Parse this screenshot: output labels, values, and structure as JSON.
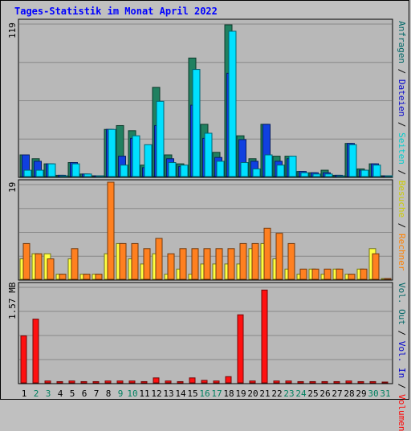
{
  "title": "Tages-Statistik im Monat April 2022",
  "panels": {
    "top": {
      "ymax_label": "119",
      "ymax": 119
    },
    "middle": {
      "ymax_label": "19",
      "ymax": 19
    },
    "bottom": {
      "ymax_label": "1.57 MB",
      "ymax": 1.57
    }
  },
  "right_legend": {
    "top": [
      {
        "text": "Anfragen",
        "color": "#006666"
      },
      {
        "text": " / ",
        "color": "#000000"
      },
      {
        "text": "Dateien",
        "color": "#0000cc"
      },
      {
        "text": " / ",
        "color": "#000000"
      },
      {
        "text": "Seiten",
        "color": "#00cccc"
      },
      {
        "text": " / ",
        "color": "#000000"
      },
      {
        "text": "Besuche",
        "color": "#cccc00"
      },
      {
        "text": " / ",
        "color": "#000000"
      },
      {
        "text": "Rechner",
        "color": "#ff8000"
      }
    ],
    "bottom": [
      {
        "text": "Vol. Out",
        "color": "#006666"
      },
      {
        "text": " / ",
        "color": "#000000"
      },
      {
        "text": "Vol. In",
        "color": "#0000cc"
      },
      {
        "text": " / ",
        "color": "#000000"
      },
      {
        "text": "Volumen",
        "color": "#ff0000"
      }
    ]
  },
  "colors": {
    "anfragen": "#208060",
    "dateien": "#1040e0",
    "seiten": "#00e0ff",
    "besuche": "#ffff40",
    "rechner": "#ff8020",
    "volumen": "#ff1010",
    "weekday_label": "#000000",
    "weekend_label": "#008060"
  },
  "chart_data": [
    {
      "type": "bar",
      "name": "top",
      "x": [
        "1",
        "2",
        "3",
        "4",
        "5",
        "6",
        "7",
        "8",
        "9",
        "10",
        "11",
        "12",
        "13",
        "14",
        "15",
        "16",
        "17",
        "18",
        "19",
        "20",
        "21",
        "22",
        "23",
        "24",
        "25",
        "26",
        "27",
        "28",
        "29",
        "30",
        "31"
      ],
      "weekend": [
        false,
        true,
        true,
        false,
        false,
        false,
        false,
        false,
        true,
        true,
        false,
        false,
        false,
        false,
        false,
        true,
        true,
        false,
        false,
        false,
        false,
        false,
        true,
        true,
        false,
        false,
        false,
        false,
        false,
        true,
        true
      ],
      "series": [
        {
          "key": "anfragen",
          "values": [
            17,
            14,
            10,
            1,
            11,
            2,
            0,
            37,
            40,
            36,
            9,
            70,
            17,
            10,
            93,
            41,
            19,
            119,
            32,
            14,
            41,
            16,
            16,
            4,
            3,
            5,
            1,
            26,
            6,
            10,
            0
          ]
        },
        {
          "key": "dateien",
          "values": [
            17,
            12,
            10,
            1,
            11,
            2,
            0,
            37,
            16,
            30,
            7,
            40,
            14,
            8,
            56,
            30,
            15,
            81,
            29,
            12,
            41,
            12,
            14,
            4,
            3,
            3,
            1,
            26,
            5,
            10,
            0
          ]
        },
        {
          "key": "seiten",
          "values": [
            5,
            5,
            10,
            0,
            10,
            2,
            0,
            37,
            9,
            32,
            25,
            59,
            11,
            9,
            84,
            34,
            12,
            114,
            11,
            6,
            17,
            9,
            16,
            3,
            2,
            2,
            0,
            25,
            5,
            9,
            0
          ]
        }
      ]
    },
    {
      "type": "bar",
      "name": "middle",
      "x": [
        "1",
        "2",
        "3",
        "4",
        "5",
        "6",
        "7",
        "8",
        "9",
        "10",
        "11",
        "12",
        "13",
        "14",
        "15",
        "16",
        "17",
        "18",
        "19",
        "20",
        "21",
        "22",
        "23",
        "24",
        "25",
        "26",
        "27",
        "28",
        "29",
        "30",
        "31"
      ],
      "series": [
        {
          "key": "besuche",
          "values": [
            4,
            5,
            5,
            1,
            4,
            1,
            1,
            5,
            7,
            4,
            3,
            5,
            1,
            2,
            1,
            3,
            3,
            3,
            3,
            6,
            7,
            4,
            2,
            1,
            2,
            1,
            2,
            1,
            2,
            6,
            0
          ]
        },
        {
          "key": "rechner",
          "values": [
            7,
            5,
            4,
            1,
            6,
            1,
            1,
            19,
            7,
            7,
            6,
            8,
            5,
            6,
            6,
            6,
            6,
            6,
            7,
            7,
            10,
            9,
            7,
            2,
            2,
            2,
            2,
            1,
            2,
            5,
            0
          ]
        }
      ]
    },
    {
      "type": "bar",
      "name": "bottom",
      "unit": "MB",
      "x": [
        "1",
        "2",
        "3",
        "4",
        "5",
        "6",
        "7",
        "8",
        "9",
        "10",
        "11",
        "12",
        "13",
        "14",
        "15",
        "16",
        "17",
        "18",
        "19",
        "20",
        "21",
        "22",
        "23",
        "24",
        "25",
        "26",
        "27",
        "28",
        "29",
        "30",
        "31"
      ],
      "series": [
        {
          "key": "volumen",
          "values": [
            0.76,
            1.03,
            0.03,
            0.02,
            0.03,
            0.02,
            0.02,
            0.03,
            0.03,
            0.03,
            0.02,
            0.08,
            0.03,
            0.02,
            0.08,
            0.04,
            0.03,
            0.1,
            1.1,
            0.03,
            1.5,
            0.03,
            0.03,
            0.02,
            0.02,
            0.02,
            0.02,
            0.03,
            0.02,
            0.02,
            0
          ]
        }
      ]
    }
  ]
}
